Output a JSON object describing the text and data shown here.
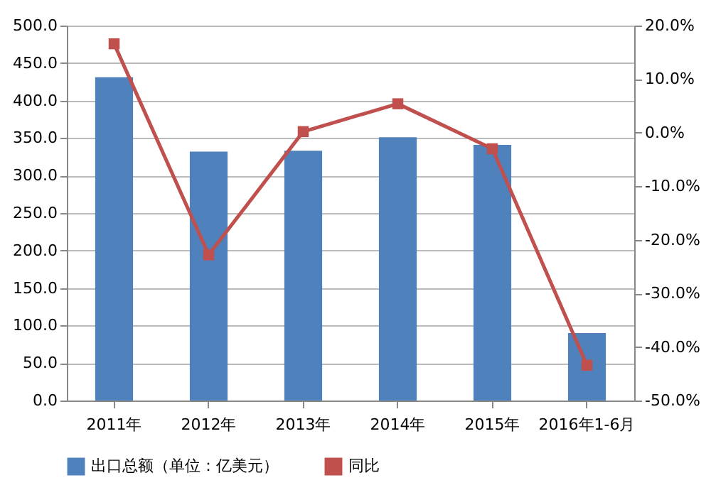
{
  "chart_data": {
    "type": "bar",
    "categories": [
      "2011年",
      "2012年",
      "2013年",
      "2014年",
      "2015年",
      "2016年1-6月"
    ],
    "series": [
      {
        "name": "出口总额（单位：亿美元）",
        "color": "#4f81bd",
        "values": [
          431,
          332,
          333,
          351,
          341,
          90
        ]
      },
      {
        "name": "同比",
        "type": "line",
        "axis": "y2",
        "color": "#c0504d",
        "marker": "square",
        "values": [
          16.6,
          -22.8,
          0.2,
          5.4,
          -3.0,
          -43.4
        ]
      }
    ],
    "ylim": [
      0,
      500
    ],
    "yticks": [
      {
        "value": 0,
        "label": "0.0"
      },
      {
        "value": 50,
        "label": "50.0"
      },
      {
        "value": 100,
        "label": "100.0"
      },
      {
        "value": 150,
        "label": "150.0"
      },
      {
        "value": 200,
        "label": "200.0"
      },
      {
        "value": 250,
        "label": "250.0"
      },
      {
        "value": 300,
        "label": "300.0"
      },
      {
        "value": 350,
        "label": "350.0"
      },
      {
        "value": 400,
        "label": "400.0"
      },
      {
        "value": 450,
        "label": "450.0"
      },
      {
        "value": 500,
        "label": "500.0"
      }
    ],
    "y2lim": [
      -50,
      20
    ],
    "y2ticks": [
      {
        "value": -50,
        "label": "-50.0%"
      },
      {
        "value": -40,
        "label": "-40.0%"
      },
      {
        "value": -30,
        "label": "-30.0%"
      },
      {
        "value": -20,
        "label": "-20.0%"
      },
      {
        "value": -10,
        "label": "-10.0%"
      },
      {
        "value": 0,
        "label": "0.0%"
      },
      {
        "value": 10,
        "label": "10.0%"
      },
      {
        "value": 20,
        "label": "20.0%"
      }
    ],
    "grid": "y",
    "legend": "bottom"
  }
}
